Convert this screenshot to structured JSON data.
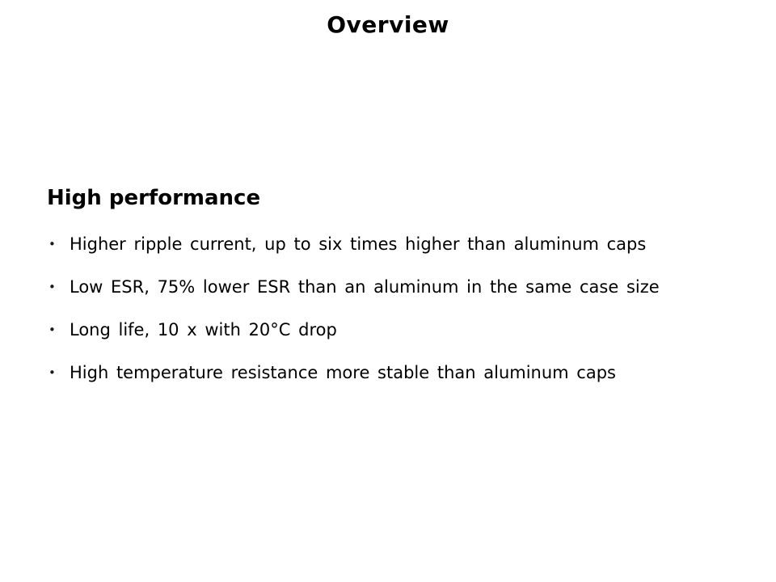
{
  "slide": {
    "title": "Overview",
    "heading": "High performance",
    "bullet_glyph": "•",
    "bullets": [
      "Higher ripple current, up to six times higher than aluminum caps",
      "Low ESR, 75% lower ESR than an aluminum in the same case size",
      "Long life, 10 x with 20°C drop",
      "High temperature resistance more stable than aluminum caps"
    ]
  }
}
